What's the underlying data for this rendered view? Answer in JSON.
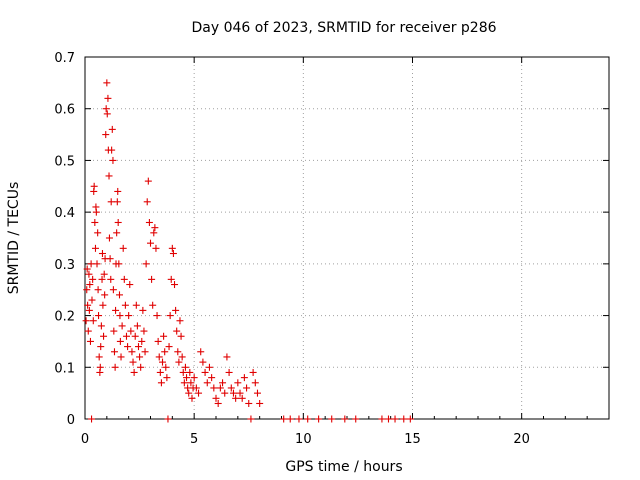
{
  "chart_data": {
    "type": "scatter",
    "title": "Day 046 of 2023, SRMTID for receiver p286",
    "xlabel": "GPS time / hours",
    "ylabel": "SRMTID / TECUs",
    "xlim": [
      0,
      24
    ],
    "ylim": [
      0,
      0.7
    ],
    "xticks": [
      0,
      5,
      10,
      15,
      20
    ],
    "xtick_labels": [
      "0",
      "5",
      "10",
      "15",
      "20"
    ],
    "yticks": [
      0,
      0.1,
      0.2,
      0.3,
      0.4,
      0.5,
      0.6,
      0.7
    ],
    "ytick_labels": [
      "0",
      "0.1",
      "0.2",
      "0.3",
      "0.4",
      "0.5",
      "0.6",
      "0.7"
    ],
    "grid": true,
    "marker": "+",
    "marker_color": "#e00000",
    "series": [
      {
        "name": "SRMTID",
        "points": [
          [
            0.05,
            0.19
          ],
          [
            0.08,
            0.25
          ],
          [
            0.1,
            0.29
          ],
          [
            0.12,
            0.22
          ],
          [
            0.15,
            0.17
          ],
          [
            0.18,
            0.28
          ],
          [
            0.2,
            0.21
          ],
          [
            0.22,
            0.26
          ],
          [
            0.25,
            0.15
          ],
          [
            0.28,
            0.3
          ],
          [
            0.3,
            0.0
          ],
          [
            0.32,
            0.23
          ],
          [
            0.35,
            0.27
          ],
          [
            0.38,
            0.19
          ],
          [
            0.4,
            0.44
          ],
          [
            0.42,
            0.45
          ],
          [
            0.45,
            0.38
          ],
          [
            0.48,
            0.33
          ],
          [
            0.5,
            0.41
          ],
          [
            0.52,
            0.4
          ],
          [
            0.55,
            0.3
          ],
          [
            0.58,
            0.36
          ],
          [
            0.6,
            0.25
          ],
          [
            0.62,
            0.2
          ],
          [
            0.65,
            0.12
          ],
          [
            0.68,
            0.09
          ],
          [
            0.7,
            0.1
          ],
          [
            0.72,
            0.14
          ],
          [
            0.75,
            0.18
          ],
          [
            0.78,
            0.27
          ],
          [
            0.8,
            0.32
          ],
          [
            0.82,
            0.22
          ],
          [
            0.85,
            0.16
          ],
          [
            0.88,
            0.28
          ],
          [
            0.9,
            0.24
          ],
          [
            0.92,
            0.31
          ],
          [
            0.95,
            0.55
          ],
          [
            0.97,
            0.6
          ],
          [
            1.0,
            0.65
          ],
          [
            1.02,
            0.59
          ],
          [
            1.05,
            0.62
          ],
          [
            1.07,
            0.52
          ],
          [
            1.1,
            0.47
          ],
          [
            1.12,
            0.35
          ],
          [
            1.15,
            0.31
          ],
          [
            1.18,
            0.27
          ],
          [
            1.2,
            0.42
          ],
          [
            1.22,
            0.52
          ],
          [
            1.25,
            0.56
          ],
          [
            1.28,
            0.5
          ],
          [
            1.3,
            0.25
          ],
          [
            1.32,
            0.17
          ],
          [
            1.35,
            0.13
          ],
          [
            1.38,
            0.1
          ],
          [
            1.4,
            0.21
          ],
          [
            1.42,
            0.3
          ],
          [
            1.45,
            0.36
          ],
          [
            1.48,
            0.42
          ],
          [
            1.5,
            0.44
          ],
          [
            1.52,
            0.38
          ],
          [
            1.55,
            0.3
          ],
          [
            1.58,
            0.24
          ],
          [
            1.6,
            0.2
          ],
          [
            1.62,
            0.15
          ],
          [
            1.65,
            0.12
          ],
          [
            1.7,
            0.18
          ],
          [
            1.75,
            0.33
          ],
          [
            1.8,
            0.27
          ],
          [
            1.85,
            0.22
          ],
          [
            1.9,
            0.16
          ],
          [
            1.95,
            0.14
          ],
          [
            2.0,
            0.2
          ],
          [
            2.05,
            0.26
          ],
          [
            2.1,
            0.17
          ],
          [
            2.15,
            0.13
          ],
          [
            2.2,
            0.11
          ],
          [
            2.25,
            0.09
          ],
          [
            2.3,
            0.16
          ],
          [
            2.35,
            0.22
          ],
          [
            2.4,
            0.18
          ],
          [
            2.45,
            0.14
          ],
          [
            2.5,
            0.12
          ],
          [
            2.55,
            0.1
          ],
          [
            2.6,
            0.15
          ],
          [
            2.65,
            0.21
          ],
          [
            2.7,
            0.17
          ],
          [
            2.75,
            0.13
          ],
          [
            2.8,
            0.3
          ],
          [
            2.85,
            0.42
          ],
          [
            2.9,
            0.46
          ],
          [
            2.95,
            0.38
          ],
          [
            3.0,
            0.34
          ],
          [
            3.05,
            0.27
          ],
          [
            3.1,
            0.22
          ],
          [
            3.15,
            0.36
          ],
          [
            3.2,
            0.37
          ],
          [
            3.25,
            0.33
          ],
          [
            3.3,
            0.2
          ],
          [
            3.35,
            0.15
          ],
          [
            3.4,
            0.12
          ],
          [
            3.45,
            0.09
          ],
          [
            3.5,
            0.07
          ],
          [
            3.55,
            0.11
          ],
          [
            3.6,
            0.16
          ],
          [
            3.65,
            0.13
          ],
          [
            3.7,
            0.1
          ],
          [
            3.75,
            0.08
          ],
          [
            3.8,
            0.0
          ],
          [
            3.85,
            0.14
          ],
          [
            3.9,
            0.2
          ],
          [
            3.95,
            0.27
          ],
          [
            4.0,
            0.33
          ],
          [
            4.05,
            0.32
          ],
          [
            4.1,
            0.26
          ],
          [
            4.15,
            0.21
          ],
          [
            4.2,
            0.17
          ],
          [
            4.25,
            0.13
          ],
          [
            4.3,
            0.11
          ],
          [
            4.35,
            0.19
          ],
          [
            4.4,
            0.16
          ],
          [
            4.45,
            0.12
          ],
          [
            4.5,
            0.09
          ],
          [
            4.55,
            0.07
          ],
          [
            4.6,
            0.1
          ],
          [
            4.65,
            0.08
          ],
          [
            4.7,
            0.06
          ],
          [
            4.75,
            0.05
          ],
          [
            4.8,
            0.09
          ],
          [
            4.85,
            0.07
          ],
          [
            4.9,
            0.04
          ],
          [
            4.95,
            0.06
          ],
          [
            5.0,
            0.08
          ],
          [
            5.1,
            0.06
          ],
          [
            5.2,
            0.05
          ],
          [
            5.3,
            0.13
          ],
          [
            5.4,
            0.11
          ],
          [
            5.5,
            0.09
          ],
          [
            5.6,
            0.07
          ],
          [
            5.7,
            0.1
          ],
          [
            5.8,
            0.08
          ],
          [
            5.9,
            0.06
          ],
          [
            6.0,
            0.04
          ],
          [
            6.1,
            0.03
          ],
          [
            6.2,
            0.06
          ],
          [
            6.3,
            0.07
          ],
          [
            6.4,
            0.05
          ],
          [
            6.5,
            0.12
          ],
          [
            6.6,
            0.09
          ],
          [
            6.7,
            0.06
          ],
          [
            6.8,
            0.05
          ],
          [
            6.9,
            0.04
          ],
          [
            7.0,
            0.07
          ],
          [
            7.1,
            0.05
          ],
          [
            7.2,
            0.04
          ],
          [
            7.3,
            0.08
          ],
          [
            7.4,
            0.06
          ],
          [
            7.5,
            0.03
          ],
          [
            7.6,
            0.0
          ],
          [
            7.7,
            0.09
          ],
          [
            7.8,
            0.07
          ],
          [
            7.9,
            0.05
          ],
          [
            8.0,
            0.03
          ],
          [
            9.1,
            0.0
          ],
          [
            9.4,
            0.0
          ],
          [
            9.8,
            0.0
          ],
          [
            10.2,
            0.0
          ],
          [
            10.7,
            0.0
          ],
          [
            11.3,
            0.0
          ],
          [
            11.9,
            0.0
          ],
          [
            12.4,
            0.0
          ],
          [
            13.6,
            0.0
          ],
          [
            13.9,
            0.0
          ],
          [
            14.2,
            0.0
          ],
          [
            14.6,
            0.0
          ],
          [
            14.9,
            0.0
          ]
        ]
      }
    ]
  }
}
